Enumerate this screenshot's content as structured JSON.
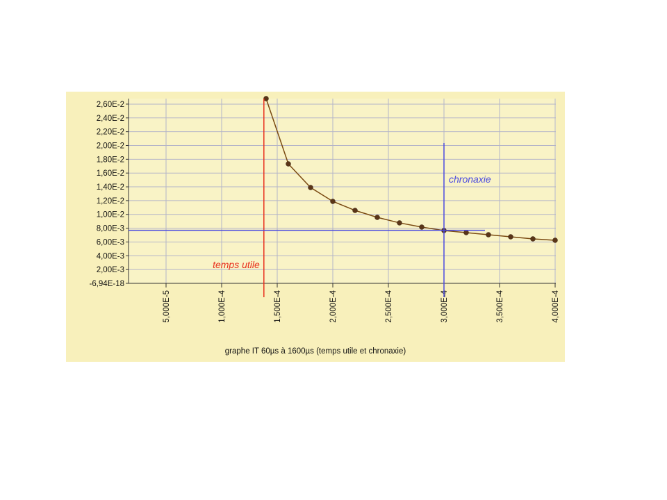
{
  "chart_data": {
    "type": "line",
    "title": "graphe IT 60µs à 1600µs (temps utile et chronaxie)",
    "x": [
      0.00014,
      0.00016,
      0.00018,
      0.0002,
      0.00022,
      0.00024,
      0.00026,
      0.00028,
      0.0003,
      0.00032,
      0.00034,
      0.00036,
      0.00038,
      0.0004
    ],
    "series": [
      {
        "color": "#7a4a12",
        "marker_color": "#5a3518",
        "values": [
          0.0268,
          0.01733,
          0.0139,
          0.01189,
          0.01058,
          0.00957,
          0.00877,
          0.00816,
          0.00766,
          0.00736,
          0.00705,
          0.00675,
          0.00645,
          0.00625
        ]
      }
    ],
    "xlim": [
      1.625e-05,
      0.000400625
    ],
    "ylim": [
      -6.94e-18,
      0.0268
    ],
    "xticks": [
      {
        "value": 5e-05,
        "label": "5,000E-5"
      },
      {
        "value": 0.0001,
        "label": "1,000E-4"
      },
      {
        "value": 0.00015,
        "label": "1,500E-4"
      },
      {
        "value": 0.0002,
        "label": "2,000E-4"
      },
      {
        "value": 0.00025,
        "label": "2,500E-4"
      },
      {
        "value": 0.0003,
        "label": "3,000E-4"
      },
      {
        "value": 0.00035,
        "label": "3,500E-4"
      },
      {
        "value": 0.0004,
        "label": "4,000E-4"
      }
    ],
    "yticks": [
      {
        "value": -6.94e-18,
        "label": "-6,94E-18"
      },
      {
        "value": 0.002,
        "label": "2,00E-3"
      },
      {
        "value": 0.004,
        "label": "4,00E-3"
      },
      {
        "value": 0.006,
        "label": "6,00E-3"
      },
      {
        "value": 0.008,
        "label": "8,00E-3"
      },
      {
        "value": 0.01,
        "label": "1,00E-2"
      },
      {
        "value": 0.012,
        "label": "1,20E-2"
      },
      {
        "value": 0.014,
        "label": "1,40E-2"
      },
      {
        "value": 0.016,
        "label": "1,60E-2"
      },
      {
        "value": 0.018,
        "label": "1,80E-2"
      },
      {
        "value": 0.02,
        "label": "2,00E-2"
      },
      {
        "value": 0.022,
        "label": "2,20E-2"
      },
      {
        "value": 0.024,
        "label": "2,40E-2"
      },
      {
        "value": 0.026,
        "label": "2,60E-2"
      }
    ],
    "grid": true,
    "reference_lines": [
      {
        "orientation": "vertical",
        "value": 0.000138,
        "color": "#e8301e",
        "label": "temps utile"
      },
      {
        "orientation": "vertical",
        "value": 0.0003,
        "color": "#4a4ae0",
        "label": "chronaxie"
      },
      {
        "orientation": "horizontal",
        "value": 0.0077,
        "color": "#4a4ae0"
      }
    ]
  }
}
